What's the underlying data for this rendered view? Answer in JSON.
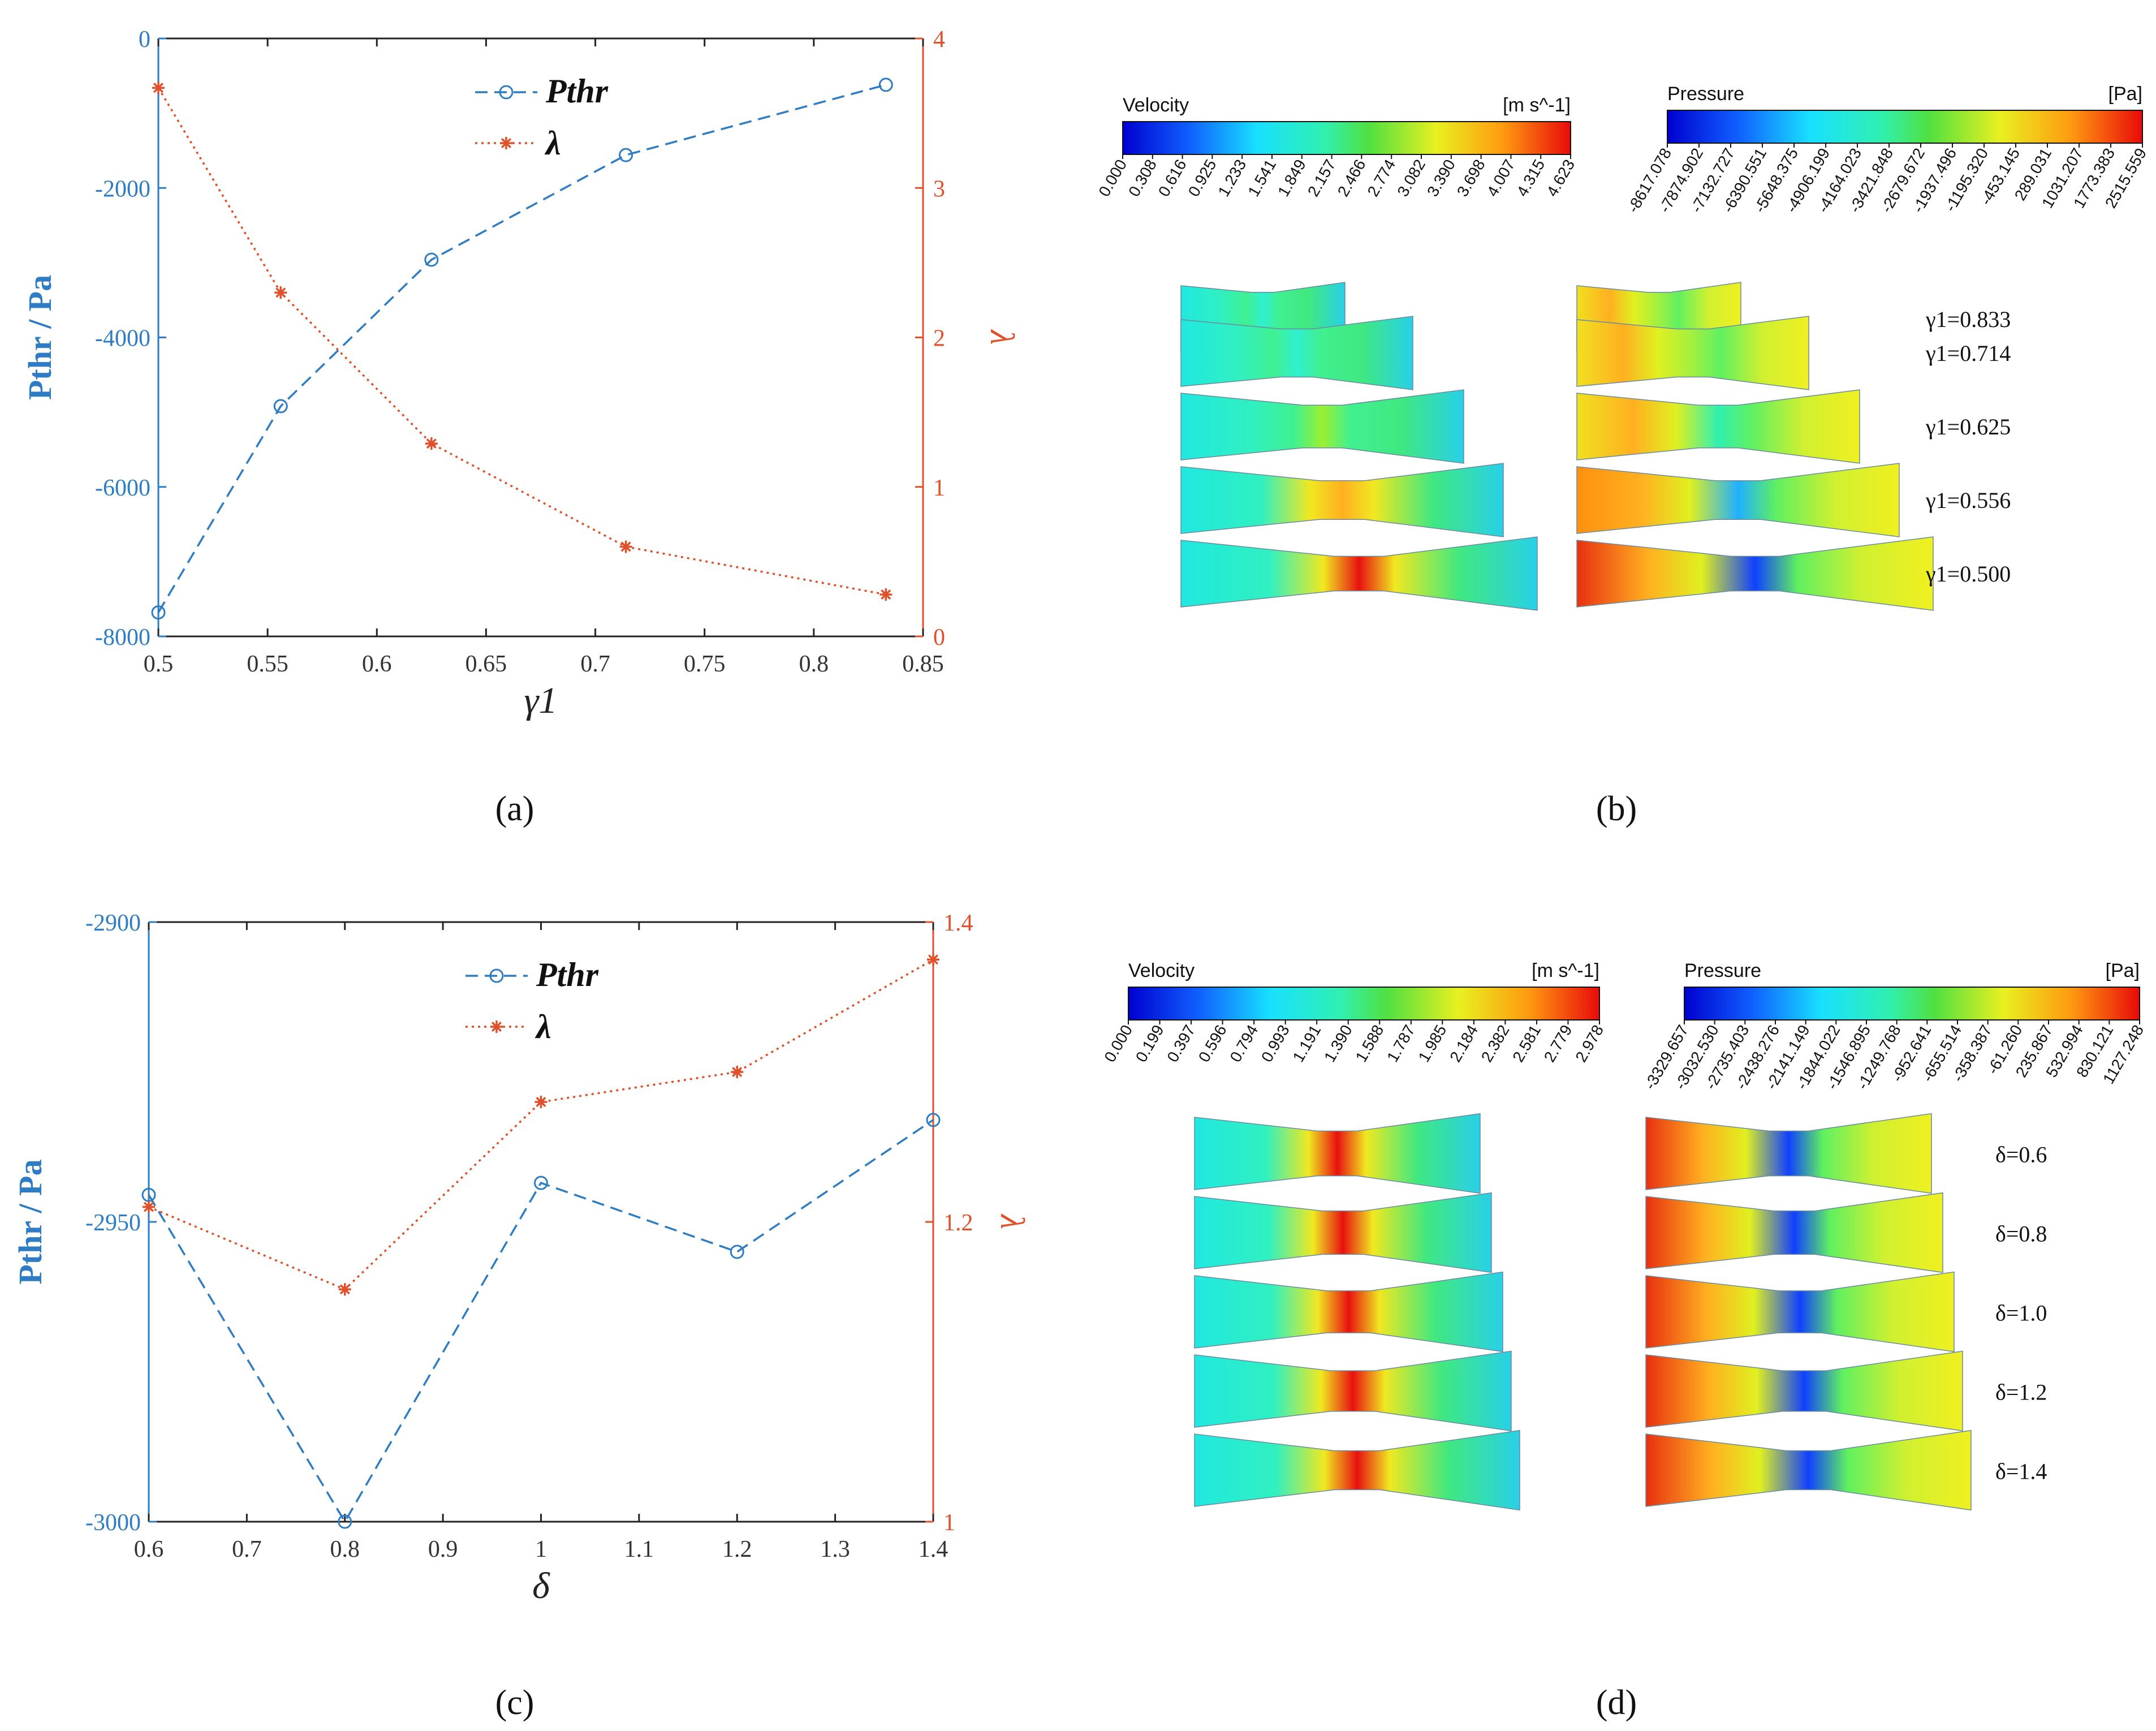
{
  "panel_labels": [
    "(a)",
    "(b)",
    "(c)",
    "(d)"
  ],
  "colors": {
    "blue": "#2e7cc3",
    "orange": "#e0502a",
    "axis": "#222222"
  },
  "chart_data": [
    {
      "panel": "a",
      "type": "line",
      "title": "",
      "xlabel": "γ1",
      "ylabel_left": "Pthr / Pa",
      "ylabel_right": "λ",
      "x": [
        0.5,
        0.556,
        0.625,
        0.714,
        0.833
      ],
      "xlim": [
        0.5,
        0.85
      ],
      "xticks": [
        0.5,
        0.55,
        0.6,
        0.65,
        0.7,
        0.75,
        0.8,
        0.85
      ],
      "xtick_labels": [
        "0.5",
        "0.55",
        "0.6",
        "0.65",
        "0.7",
        "0.75",
        "0.8",
        "0.85"
      ],
      "ylim_left": [
        -8000,
        0
      ],
      "yticks_left": [
        -8000,
        -6000,
        -4000,
        -2000,
        0
      ],
      "ytick_labels_left": [
        "-8000",
        "-6000",
        "-4000",
        "-2000",
        "0"
      ],
      "ylim_right": [
        0,
        4
      ],
      "yticks_right": [
        0,
        1,
        2,
        3,
        4
      ],
      "ytick_labels_right": [
        "0",
        "1",
        "2",
        "3",
        "4"
      ],
      "legend": [
        "Pthr",
        "λ"
      ],
      "legend_position": "top-center",
      "series": [
        {
          "name": "Pthr",
          "axis": "left",
          "style": "dashed",
          "marker": "circle",
          "values": [
            -7680,
            -4920,
            -2960,
            -1560,
            -620
          ]
        },
        {
          "name": "λ",
          "axis": "right",
          "style": "dotted",
          "marker": "star",
          "values": [
            3.67,
            2.3,
            1.29,
            0.6,
            0.28
          ]
        }
      ]
    },
    {
      "panel": "c",
      "type": "line",
      "title": "",
      "xlabel": "δ",
      "ylabel_left": "Pthr / Pa",
      "ylabel_right": "λ",
      "x": [
        0.6,
        0.8,
        1.0,
        1.2,
        1.4
      ],
      "xlim": [
        0.6,
        1.4
      ],
      "xticks": [
        0.6,
        0.7,
        0.8,
        0.9,
        1.0,
        1.1,
        1.2,
        1.3,
        1.4
      ],
      "xtick_labels": [
        "0.6",
        "0.7",
        "0.8",
        "0.9",
        "1",
        "1.1",
        "1.2",
        "1.3",
        "1.4"
      ],
      "ylim_left": [
        -3000,
        -2900
      ],
      "yticks_left": [
        -3000,
        -2950,
        -2900
      ],
      "ytick_labels_left": [
        "-3000",
        "-2950",
        "-2900"
      ],
      "ylim_right": [
        1.0,
        1.4
      ],
      "yticks_right": [
        1.0,
        1.2,
        1.4
      ],
      "ytick_labels_right": [
        "1",
        "1.2",
        "1.4"
      ],
      "legend": [
        "Pthr",
        "λ"
      ],
      "legend_position": "top-center",
      "series": [
        {
          "name": "Pthr",
          "axis": "left",
          "style": "dashed",
          "marker": "circle",
          "values": [
            -2945.5,
            -3000,
            -2943.5,
            -2955,
            -2933
          ]
        },
        {
          "name": "λ",
          "axis": "right",
          "style": "dotted",
          "marker": "star",
          "values": [
            1.21,
            1.155,
            1.28,
            1.3,
            1.375
          ]
        }
      ]
    },
    {
      "panel": "b",
      "type": "contour",
      "parameter": "γ1",
      "velocity_legend": {
        "title": "Velocity",
        "unit": "[m s^-1]",
        "ticks": [
          "0.000",
          "0.308",
          "0.616",
          "0.925",
          "1.233",
          "1.541",
          "1.849",
          "2.157",
          "2.466",
          "2.774",
          "3.082",
          "3.390",
          "3.698",
          "4.007",
          "4.315",
          "4.623"
        ]
      },
      "pressure_legend": {
        "title": "Pressure",
        "unit": "[Pa]",
        "ticks": [
          "-8617.078",
          "-7874.902",
          "-7132.727",
          "-6390.551",
          "-5648.375",
          "-4906.199",
          "-4164.023",
          "-3421.848",
          "-2679.672",
          "-1937.496",
          "-1195.320",
          "-453.145",
          "289.031",
          "1031.207",
          "1773.383",
          "2515.559"
        ]
      },
      "case_labels": [
        "γ1=0.833",
        "γ1=0.714",
        "γ1=0.625",
        "γ1=0.556",
        "γ1=0.500"
      ]
    },
    {
      "panel": "d",
      "type": "contour",
      "parameter": "δ",
      "velocity_legend": {
        "title": "Velocity",
        "unit": "[m s^-1]",
        "ticks": [
          "0.000",
          "0.199",
          "0.397",
          "0.596",
          "0.794",
          "0.993",
          "1.191",
          "1.390",
          "1.588",
          "1.787",
          "1.985",
          "2.184",
          "2.382",
          "2.581",
          "2.779",
          "2.978"
        ]
      },
      "pressure_legend": {
        "title": "Pressure",
        "unit": "[Pa]",
        "ticks": [
          "-3329.657",
          "-3032.530",
          "-2735.403",
          "-2438.276",
          "-2141.149",
          "-1844.022",
          "-1546.895",
          "-1249.768",
          "-952.641",
          "-655.514",
          "-358.387",
          "-61.260",
          "235.867",
          "532.994",
          "830.121",
          "1127.248"
        ]
      },
      "case_labels": [
        "δ=0.6",
        "δ=0.8",
        "δ=1.0",
        "δ=1.2",
        "δ=1.4"
      ]
    }
  ]
}
